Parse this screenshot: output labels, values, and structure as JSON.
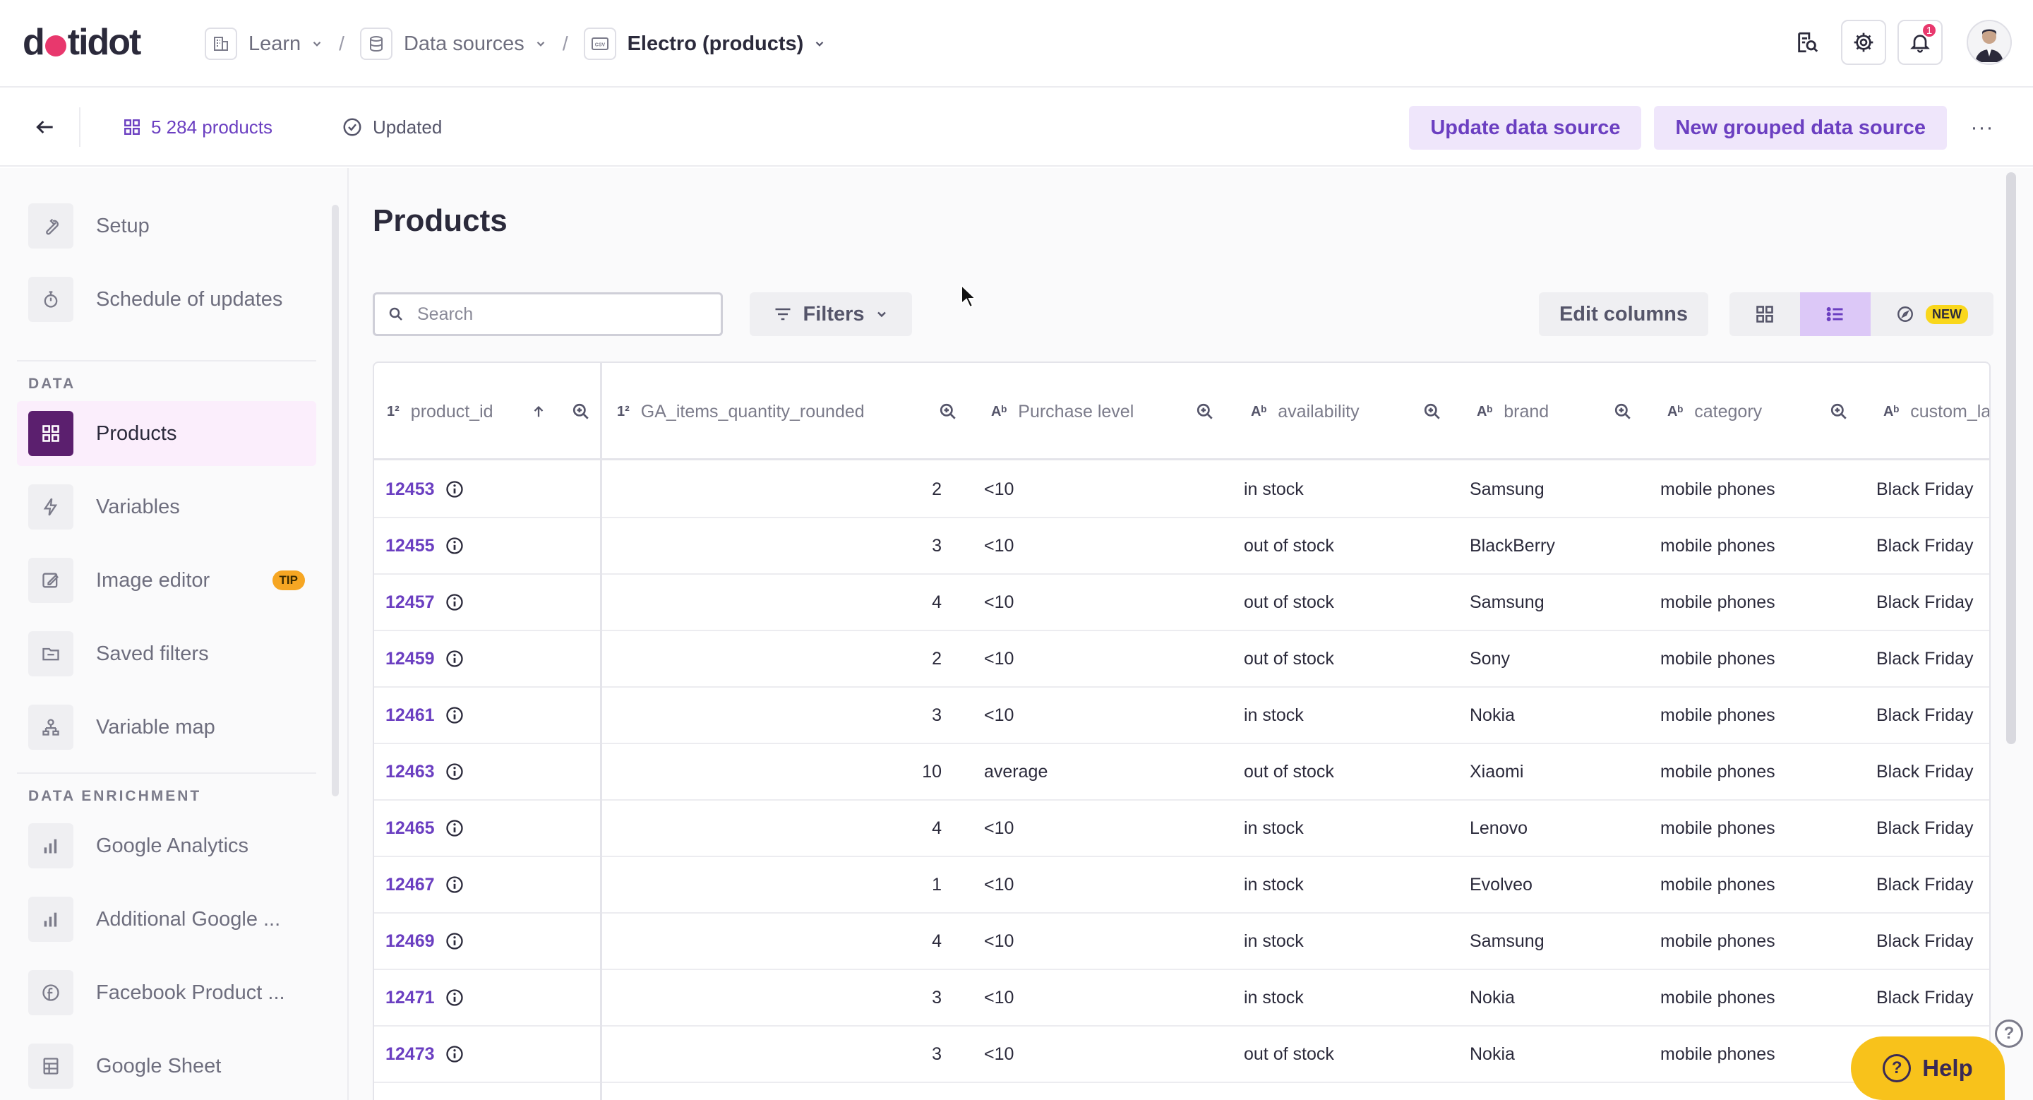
{
  "header": {
    "logo_left": "d",
    "logo_right": "tidot",
    "breadcrumbs": [
      {
        "label": "Learn",
        "icon": "building-icon"
      },
      {
        "label": "Data sources",
        "icon": "database-icon"
      },
      {
        "label": "Electro (products)",
        "icon": "csv-file-icon"
      }
    ],
    "separator": "/",
    "notification_count": "1"
  },
  "subheader": {
    "product_count": "5 284 products",
    "status": "Updated",
    "update_button": "Update data source",
    "grouped_button": "New grouped data source",
    "more": "···"
  },
  "sidebar": {
    "top_items": [
      {
        "label": "Setup",
        "icon": "wrench-icon"
      },
      {
        "label": "Schedule of updates",
        "icon": "stopwatch-icon"
      }
    ],
    "data_section": "DATA",
    "data_items": [
      {
        "label": "Products",
        "icon": "grid-icon",
        "active": true
      },
      {
        "label": "Variables",
        "icon": "bolt-icon"
      },
      {
        "label": "Image editor",
        "icon": "image-edit-icon",
        "badge": "TIP"
      },
      {
        "label": "Saved filters",
        "icon": "folder-icon"
      },
      {
        "label": "Variable map",
        "icon": "sitemap-icon"
      }
    ],
    "enrichment_section": "DATA ENRICHMENT",
    "enrichment_items": [
      {
        "label": "Google Analytics",
        "icon": "analytics-icon"
      },
      {
        "label": "Additional Google ...",
        "icon": "analytics-icon"
      },
      {
        "label": "Facebook Product ...",
        "icon": "facebook-icon"
      },
      {
        "label": "Google Sheet",
        "icon": "sheet-icon"
      }
    ]
  },
  "main": {
    "title": "Products",
    "search_placeholder": "Search",
    "filters_label": "Filters",
    "edit_columns_label": "Edit columns",
    "new_badge": "NEW"
  },
  "table": {
    "columns": [
      {
        "label": "product_id",
        "type": "1²"
      },
      {
        "label": "GA_items_quantity_rounded",
        "type": "1²"
      },
      {
        "label": "Purchase level",
        "type": "Aᵇ"
      },
      {
        "label": "availability",
        "type": "Aᵇ"
      },
      {
        "label": "brand",
        "type": "Aᵇ"
      },
      {
        "label": "category",
        "type": "Aᵇ"
      },
      {
        "label": "custom_lab",
        "type": "Aᵇ"
      }
    ],
    "rows": [
      {
        "id": "12453",
        "qty": "2",
        "level": "<10",
        "availability": "in stock",
        "brand": "Samsung",
        "category": "mobile phones",
        "custom": "Black Friday"
      },
      {
        "id": "12455",
        "qty": "3",
        "level": "<10",
        "availability": "out of stock",
        "brand": "BlackBerry",
        "category": "mobile phones",
        "custom": "Black Friday"
      },
      {
        "id": "12457",
        "qty": "4",
        "level": "<10",
        "availability": "out of stock",
        "brand": "Samsung",
        "category": "mobile phones",
        "custom": "Black Friday"
      },
      {
        "id": "12459",
        "qty": "2",
        "level": "<10",
        "availability": "out of stock",
        "brand": "Sony",
        "category": "mobile phones",
        "custom": "Black Friday"
      },
      {
        "id": "12461",
        "qty": "3",
        "level": "<10",
        "availability": "in stock",
        "brand": "Nokia",
        "category": "mobile phones",
        "custom": "Black Friday"
      },
      {
        "id": "12463",
        "qty": "10",
        "level": "average",
        "availability": "out of stock",
        "brand": "Xiaomi",
        "category": "mobile phones",
        "custom": "Black Friday"
      },
      {
        "id": "12465",
        "qty": "4",
        "level": "<10",
        "availability": "in stock",
        "brand": "Lenovo",
        "category": "mobile phones",
        "custom": "Black Friday"
      },
      {
        "id": "12467",
        "qty": "1",
        "level": "<10",
        "availability": "in stock",
        "brand": "Evolveo",
        "category": "mobile phones",
        "custom": "Black Friday"
      },
      {
        "id": "12469",
        "qty": "4",
        "level": "<10",
        "availability": "in stock",
        "brand": "Samsung",
        "category": "mobile phones",
        "custom": "Black Friday"
      },
      {
        "id": "12471",
        "qty": "3",
        "level": "<10",
        "availability": "in stock",
        "brand": "Nokia",
        "category": "mobile phones",
        "custom": "Black Friday"
      },
      {
        "id": "12473",
        "qty": "3",
        "level": "<10",
        "availability": "out of stock",
        "brand": "Nokia",
        "category": "mobile phones",
        "custom": ""
      }
    ]
  },
  "help": {
    "label": "Help",
    "q": "?"
  },
  "colors": {
    "accent": "#6b3fc1",
    "brand_pink": "#e8386d",
    "active_bg": "#fbeefc",
    "help_yellow": "#f8c21b"
  }
}
